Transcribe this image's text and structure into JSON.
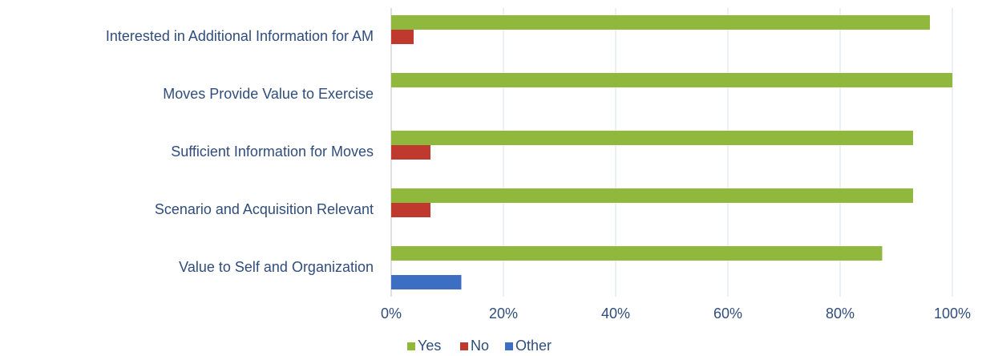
{
  "chart_data": {
    "type": "bar",
    "orientation": "horizontal",
    "categories": [
      "Interested in Additional Information for AM",
      "Moves Provide Value to Exercise",
      "Sufficient Information for Moves",
      "Scenario and Acquisition Relevant",
      "Value to Self and Organization"
    ],
    "series": [
      {
        "name": "Yes",
        "color": "#8fb83d",
        "values": [
          96,
          100,
          93,
          93,
          87.5
        ]
      },
      {
        "name": "No",
        "color": "#c0392f",
        "values": [
          4,
          0,
          7,
          7,
          0
        ]
      },
      {
        "name": "Other",
        "color": "#3c6fc1",
        "values": [
          0,
          0,
          0,
          0,
          12.5
        ]
      }
    ],
    "xlim": [
      0,
      100
    ],
    "xticks": [
      {
        "value": 0,
        "label": "0%"
      },
      {
        "value": 20,
        "label": "20%"
      },
      {
        "value": 40,
        "label": "40%"
      },
      {
        "value": 60,
        "label": "60%"
      },
      {
        "value": 80,
        "label": "80%"
      },
      {
        "value": 100,
        "label": "100%"
      }
    ],
    "grid": true,
    "legend": "bottom"
  }
}
